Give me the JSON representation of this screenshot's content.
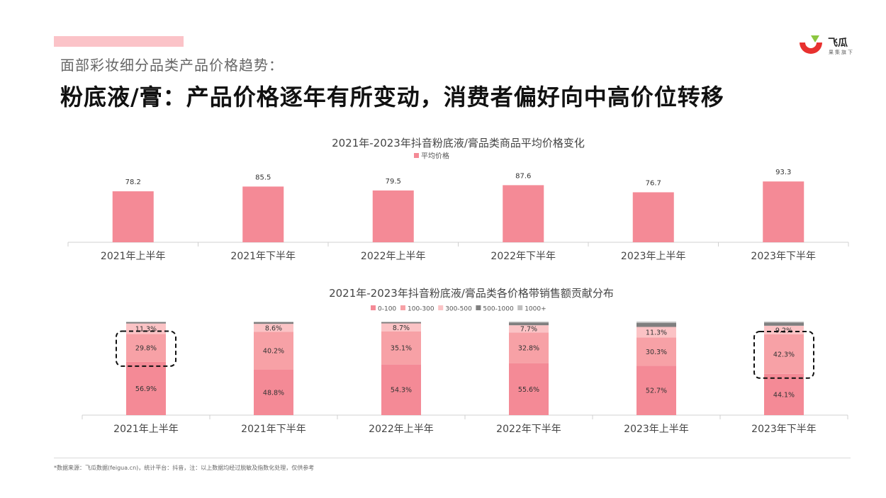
{
  "header": {
    "subtitle": "面部彩妆细分品类产品价格趋势：",
    "title": "粉底液/膏：产品价格逐年有所变动，消费者偏好向中高价位转移"
  },
  "logo": {
    "name": "飞瓜",
    "tagline": "果集旗下",
    "icon": "feigua-logo-icon",
    "colors": {
      "red": "#e8312f",
      "green": "#8cc63f"
    }
  },
  "chart_data": [
    {
      "type": "bar",
      "title": "2021年-2023年抖音粉底液/膏品类商品平均价格变化",
      "categories": [
        "2021年上半年",
        "2021年下半年",
        "2022年上半年",
        "2022年下半年",
        "2023年上半年",
        "2023年下半年"
      ],
      "series": [
        {
          "name": "平均价格",
          "values": [
            78.2,
            85.5,
            79.5,
            87.6,
            76.7,
            93.3
          ],
          "color": "#f48a96"
        }
      ],
      "data_labels": [
        "78.2",
        "85.5",
        "79.5",
        "87.6",
        "76.7",
        "93.3"
      ],
      "ylim": [
        0,
        100
      ],
      "grid": false,
      "legend_position": "top-center"
    },
    {
      "type": "bar",
      "stacked": true,
      "percent": true,
      "title": "2021年-2023年抖音粉底液/膏品类各价格带销售额贡献分布",
      "categories": [
        "2021年上半年",
        "2021年下半年",
        "2022年上半年",
        "2022年下半年",
        "2023年上半年",
        "2023年下半年"
      ],
      "series": [
        {
          "name": "0-100",
          "values": [
            56.9,
            48.8,
            54.3,
            55.6,
            52.7,
            44.1
          ],
          "color": "#f48a96"
        },
        {
          "name": "100-300",
          "values": [
            29.8,
            40.2,
            35.1,
            32.8,
            30.3,
            42.3
          ],
          "color": "#f7a1a6"
        },
        {
          "name": "300-500",
          "values": [
            11.3,
            8.6,
            8.7,
            7.7,
            11.3,
            9.2
          ],
          "color": "#fbc3c5"
        },
        {
          "name": "500-1000",
          "values": [
            1.4,
            1.8,
            1.3,
            2.9,
            4.3,
            3.3
          ],
          "color": "#7f7f7f"
        },
        {
          "name": "1000+",
          "values": [
            0.6,
            0.6,
            0.6,
            1.0,
            1.4,
            1.1
          ],
          "color": "#bfbfbf"
        }
      ],
      "data_labels": [
        [
          "56.9%",
          "48.8%",
          "54.3%",
          "55.6%",
          "52.7%",
          "44.1%"
        ],
        [
          "29.8%",
          "40.2%",
          "35.1%",
          "32.8%",
          "30.3%",
          "42.3%"
        ],
        [
          "11.3%",
          "8.6%",
          "8.7%",
          "7.7%",
          "11.3%",
          "9.2%"
        ]
      ],
      "ylim": [
        0,
        100
      ],
      "grid": false,
      "legend_position": "top-center",
      "highlight_boxes": [
        {
          "category": "2021年上半年",
          "series": "100-300"
        },
        {
          "category": "2023年下半年",
          "series": "100-300"
        }
      ]
    }
  ],
  "footer": {
    "note": "*数据来源：飞瓜数据(feigua.cn)，统计平台：抖音，注：以上数据均经过脱敏及指数化处理，仅供参考"
  }
}
